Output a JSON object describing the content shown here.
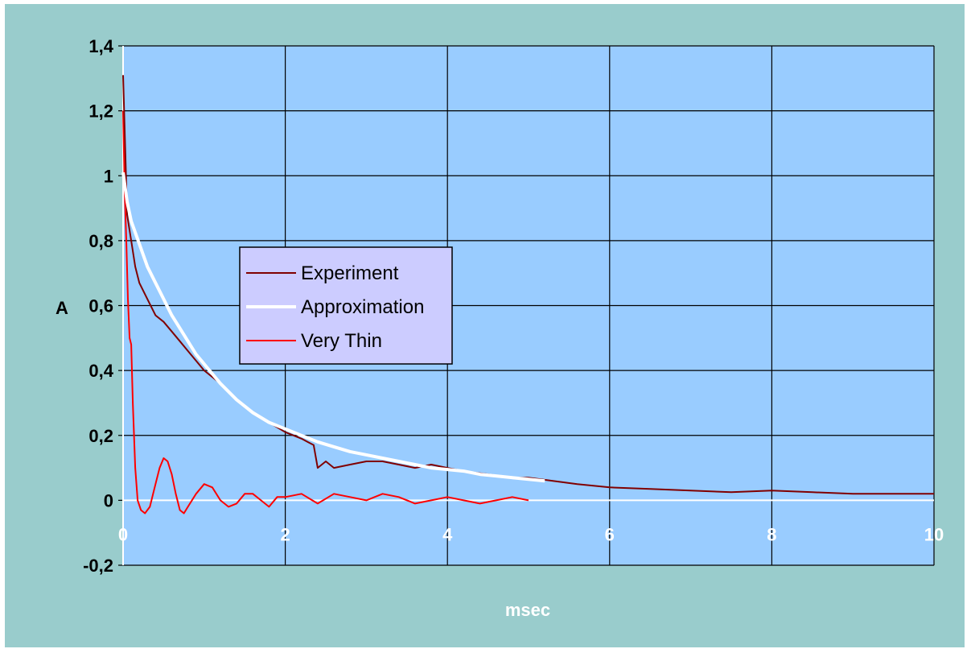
{
  "chart_data": {
    "type": "line",
    "title": "",
    "xlabel": "msec",
    "ylabel": "A",
    "xlim": [
      0,
      10
    ],
    "ylim": [
      -0.2,
      1.4
    ],
    "xticks": [
      0,
      2,
      4,
      6,
      8,
      10
    ],
    "xtick_labels": [
      "0",
      "2",
      "4",
      "6",
      "8",
      "10"
    ],
    "yticks": [
      -0.2,
      0,
      0.2,
      0.4,
      0.6,
      0.8,
      1,
      1.2,
      1.4
    ],
    "ytick_labels": [
      "-0,2",
      "0",
      "0,2",
      "0,4",
      "0,6",
      "0,8",
      "1",
      "1,2",
      "1,4"
    ],
    "grid": true,
    "legend_position": "center-left",
    "plot_background": "#99ccff",
    "chart_background": "#99cccc",
    "series": [
      {
        "name": "Experiment",
        "color": "#800000",
        "x": [
          0,
          0.05,
          0.1,
          0.15,
          0.2,
          0.3,
          0.4,
          0.5,
          0.6,
          0.7,
          0.8,
          1.0,
          1.2,
          1.4,
          1.6,
          1.8,
          2.0,
          2.2,
          2.35,
          2.4,
          2.5,
          2.6,
          2.8,
          3.0,
          3.2,
          3.4,
          3.6,
          3.8,
          4.0,
          4.2,
          4.5,
          4.8,
          5.0,
          5.3,
          5.6,
          6.0,
          6.5,
          7.0,
          7.5,
          8.0,
          8.5,
          9.0,
          9.5,
          10.0
        ],
        "y": [
          1.31,
          0.88,
          0.8,
          0.72,
          0.67,
          0.62,
          0.57,
          0.55,
          0.52,
          0.49,
          0.46,
          0.4,
          0.36,
          0.31,
          0.27,
          0.24,
          0.21,
          0.19,
          0.17,
          0.1,
          0.12,
          0.1,
          0.11,
          0.12,
          0.12,
          0.11,
          0.1,
          0.11,
          0.1,
          0.09,
          0.08,
          0.07,
          0.07,
          0.06,
          0.05,
          0.04,
          0.035,
          0.03,
          0.025,
          0.03,
          0.025,
          0.02,
          0.02,
          0.02
        ]
      },
      {
        "name": "Approximation",
        "color": "#ffffff",
        "x": [
          0,
          0.05,
          0.1,
          0.2,
          0.3,
          0.4,
          0.5,
          0.6,
          0.7,
          0.8,
          0.9,
          1.0,
          1.2,
          1.4,
          1.6,
          1.8,
          2.0,
          2.2,
          2.4,
          2.6,
          2.8,
          3.0,
          3.2,
          3.4,
          3.6,
          3.8,
          4.0,
          4.2,
          4.4,
          4.6,
          4.8,
          5.0,
          5.2
        ],
        "y": [
          1.01,
          0.92,
          0.86,
          0.79,
          0.72,
          0.67,
          0.62,
          0.57,
          0.53,
          0.49,
          0.45,
          0.42,
          0.36,
          0.31,
          0.27,
          0.24,
          0.22,
          0.2,
          0.18,
          0.165,
          0.15,
          0.14,
          0.13,
          0.12,
          0.11,
          0.1,
          0.095,
          0.09,
          0.08,
          0.075,
          0.07,
          0.065,
          0.06
        ]
      },
      {
        "name": "Very Thin",
        "color": "#ff0000",
        "x": [
          0,
          0.02,
          0.04,
          0.06,
          0.08,
          0.1,
          0.12,
          0.15,
          0.18,
          0.22,
          0.27,
          0.33,
          0.4,
          0.45,
          0.5,
          0.55,
          0.6,
          0.65,
          0.7,
          0.75,
          0.8,
          0.9,
          1.0,
          1.1,
          1.2,
          1.3,
          1.4,
          1.5,
          1.6,
          1.7,
          1.8,
          1.9,
          2.0,
          2.2,
          2.4,
          2.6,
          2.8,
          3.0,
          3.2,
          3.4,
          3.6,
          3.8,
          4.0,
          4.2,
          4.4,
          4.6,
          4.8,
          5.0
        ],
        "y": [
          1.2,
          0.95,
          0.8,
          0.62,
          0.5,
          0.48,
          0.3,
          0.1,
          0.0,
          -0.03,
          -0.04,
          -0.02,
          0.05,
          0.1,
          0.13,
          0.12,
          0.08,
          0.02,
          -0.03,
          -0.04,
          -0.02,
          0.02,
          0.05,
          0.04,
          0.0,
          -0.02,
          -0.01,
          0.02,
          0.02,
          0.0,
          -0.02,
          0.01,
          0.01,
          0.02,
          -0.01,
          0.02,
          0.01,
          0.0,
          0.02,
          0.01,
          -0.01,
          0.0,
          0.01,
          0.0,
          -0.01,
          0.0,
          0.01,
          0.0
        ]
      }
    ]
  }
}
